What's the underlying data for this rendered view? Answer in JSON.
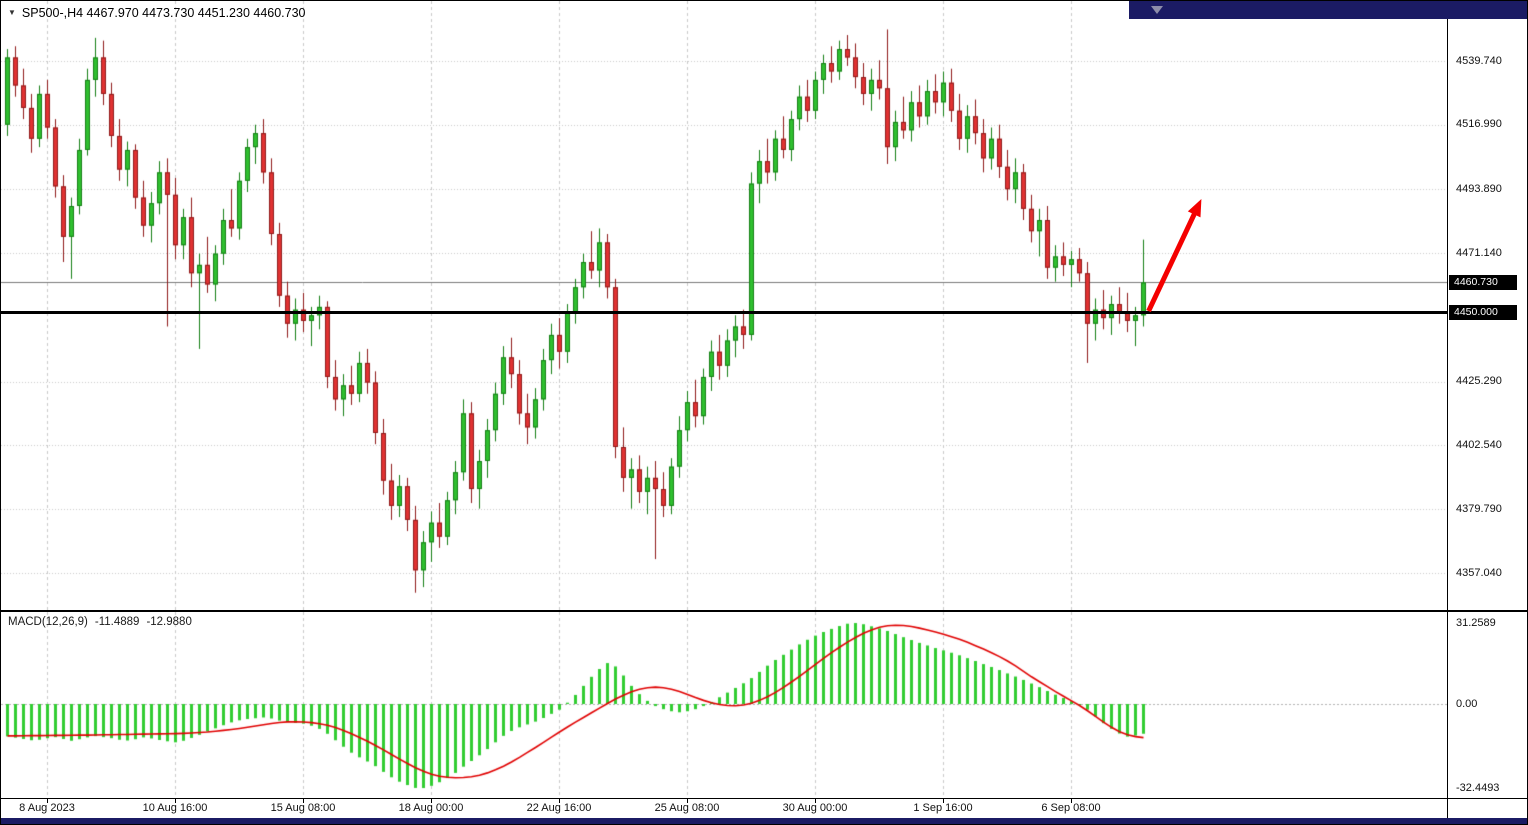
{
  "header": {
    "marker_icon": "▼",
    "title": "SP500-,H4 4467.970 4473.730 4451.230 4460.730"
  },
  "indicator": {
    "label": "MACD(12,26,9)",
    "main_value": "-11.4889",
    "signal_value": "-12.9880"
  },
  "price_axis": {
    "labels": [
      {
        "text": "4539.740",
        "value": 4539.74
      },
      {
        "text": "4516.990",
        "value": 4516.99
      },
      {
        "text": "4493.890",
        "value": 4493.89
      },
      {
        "text": "4471.140",
        "value": 4471.14
      },
      {
        "text": "4425.290",
        "value": 4425.29
      },
      {
        "text": "4402.540",
        "value": 4402.54
      },
      {
        "text": "4379.790",
        "value": 4379.79
      },
      {
        "text": "4357.040",
        "value": 4357.04
      }
    ],
    "badges": [
      {
        "text": "4460.730",
        "value": 4460.73
      },
      {
        "text": "4450.000",
        "value": 4450.0
      }
    ]
  },
  "macd_axis": {
    "labels": [
      {
        "text": "31.2589",
        "value": 31.2589
      },
      {
        "text": "0.00",
        "value": 0
      },
      {
        "text": "-32.4493",
        "value": -32.4493
      }
    ]
  },
  "time_axis": {
    "labels": [
      "8 Aug 2023",
      "10 Aug 16:00",
      "15 Aug 08:00",
      "18 Aug 00:00",
      "22 Aug 16:00",
      "25 Aug 08:00",
      "30 Aug 00:00",
      "1 Sep 16:00",
      "6 Sep 08:00"
    ]
  },
  "chart_data": [
    {
      "type": "candlestick",
      "title": "SP500-,H4",
      "symbol": "SP500-",
      "timeframe": "H4",
      "display_ohlc": {
        "open": "4467.970",
        "high": "4473.730",
        "low": "4451.230",
        "close": "4460.730"
      },
      "current_price": 4460.73,
      "y_ticks": [
        4539.74,
        4516.99,
        4493.89,
        4471.14,
        4425.29,
        4402.54,
        4379.79,
        4357.04
      ],
      "x_tick_labels": [
        "8 Aug 2023",
        "10 Aug 16:00",
        "15 Aug 08:00",
        "18 Aug 00:00",
        "22 Aug 16:00",
        "25 Aug 08:00",
        "30 Aug 00:00",
        "1 Sep 16:00",
        "6 Sep 08:00"
      ],
      "up_color": "#2fbf2f",
      "down_color": "#e03232",
      "objects": {
        "support_line": {
          "price": 4450.0,
          "color": "#000000",
          "width": 3
        },
        "trend_arrow": {
          "from": {
            "bar": 142.7,
            "price": 4450.5
          },
          "to": {
            "bar": 149.3,
            "price": 4490.5
          },
          "color": "#f40000"
        }
      },
      "candles": [
        [
          4517,
          4544,
          4513,
          4541
        ],
        [
          4541,
          4545,
          4527,
          4531
        ],
        [
          4531,
          4537,
          4519,
          4523
        ],
        [
          4523,
          4528,
          4507,
          4512
        ],
        [
          4512,
          4531,
          4509,
          4528
        ],
        [
          4528,
          4533,
          4512,
          4516
        ],
        [
          4516,
          4519,
          4491,
          4495
        ],
        [
          4495,
          4499,
          4468,
          4477
        ],
        [
          4477,
          4491,
          4462,
          4488
        ],
        [
          4488,
          4512,
          4485,
          4508
        ],
        [
          4508,
          4537,
          4506,
          4533
        ],
        [
          4533,
          4548,
          4527,
          4541
        ],
        [
          4541,
          4547,
          4524,
          4528
        ],
        [
          4528,
          4532,
          4509,
          4513
        ],
        [
          4513,
          4519,
          4497,
          4501
        ],
        [
          4501,
          4511,
          4495,
          4508
        ],
        [
          4508,
          4510,
          4487,
          4491
        ],
        [
          4491,
          4497,
          4477,
          4481
        ],
        [
          4481,
          4493,
          4475,
          4489
        ],
        [
          4489,
          4504,
          4485,
          4500
        ],
        [
          4500,
          4505,
          4445,
          4492
        ],
        [
          4492,
          4498,
          4469,
          4474
        ],
        [
          4474,
          4487,
          4469,
          4484
        ],
        [
          4484,
          4491,
          4459,
          4464
        ],
        [
          4464,
          4471,
          4437,
          4467
        ],
        [
          4467,
          4477,
          4457,
          4460
        ],
        [
          4460,
          4474,
          4454,
          4471
        ],
        [
          4471,
          4487,
          4467,
          4483
        ],
        [
          4483,
          4494,
          4477,
          4480
        ],
        [
          4480,
          4500,
          4476,
          4497
        ],
        [
          4497,
          4512,
          4493,
          4509
        ],
        [
          4509,
          4517,
          4503,
          4514
        ],
        [
          4514,
          4519,
          4496,
          4500
        ],
        [
          4500,
          4505,
          4474,
          4478
        ],
        [
          4478,
          4482,
          4452,
          4456
        ],
        [
          4456,
          4461,
          4441,
          4446
        ],
        [
          4446,
          4455,
          4440,
          4451
        ],
        [
          4451,
          4457,
          4443,
          4447
        ],
        [
          4447,
          4452,
          4438,
          4449
        ],
        [
          4449,
          4456,
          4444,
          4452
        ],
        [
          4452,
          4454,
          4423,
          4427
        ],
        [
          4427,
          4433,
          4415,
          4419
        ],
        [
          4419,
          4428,
          4413,
          4424
        ],
        [
          4424,
          4431,
          4417,
          4421
        ],
        [
          4421,
          4436,
          4418,
          4432
        ],
        [
          4432,
          4437,
          4421,
          4425
        ],
        [
          4425,
          4429,
          4403,
          4407
        ],
        [
          4407,
          4412,
          4385,
          4390
        ],
        [
          4390,
          4396,
          4376,
          4381
        ],
        [
          4381,
          4392,
          4377,
          4388
        ],
        [
          4388,
          4391,
          4372,
          4376
        ],
        [
          4376,
          4381,
          4350,
          4358
        ],
        [
          4358,
          4372,
          4352,
          4368
        ],
        [
          4368,
          4379,
          4361,
          4375
        ],
        [
          4375,
          4382,
          4366,
          4370
        ],
        [
          4370,
          4386,
          4367,
          4383
        ],
        [
          4383,
          4397,
          4378,
          4393
        ],
        [
          4393,
          4419,
          4390,
          4414
        ],
        [
          4414,
          4418,
          4382,
          4387
        ],
        [
          4387,
          4401,
          4380,
          4397
        ],
        [
          4397,
          4412,
          4391,
          4408
        ],
        [
          4408,
          4425,
          4404,
          4421
        ],
        [
          4421,
          4438,
          4417,
          4434
        ],
        [
          4434,
          4441,
          4423,
          4428
        ],
        [
          4428,
          4433,
          4410,
          4414
        ],
        [
          4414,
          4421,
          4403,
          4409
        ],
        [
          4409,
          4423,
          4405,
          4419
        ],
        [
          4419,
          4437,
          4415,
          4433
        ],
        [
          4433,
          4446,
          4428,
          4442
        ],
        [
          4442,
          4448,
          4430,
          4436
        ],
        [
          4436,
          4453,
          4432,
          4450
        ],
        [
          4450,
          4462,
          4446,
          4459
        ],
        [
          4459,
          4471,
          4455,
          4468
        ],
        [
          4468,
          4479,
          4462,
          4465
        ],
        [
          4465,
          4480,
          4459,
          4475
        ],
        [
          4475,
          4478,
          4455,
          4459
        ],
        [
          4459,
          4462,
          4398,
          4402
        ],
        [
          4402,
          4409,
          4386,
          4391
        ],
        [
          4391,
          4398,
          4380,
          4394
        ],
        [
          4394,
          4399,
          4382,
          4386
        ],
        [
          4386,
          4395,
          4378,
          4391
        ],
        [
          4391,
          4397,
          4362,
          4387
        ],
        [
          4387,
          4393,
          4377,
          4381
        ],
        [
          4381,
          4398,
          4378,
          4395
        ],
        [
          4395,
          4413,
          4391,
          4408
        ],
        [
          4408,
          4422,
          4404,
          4418
        ],
        [
          4418,
          4426,
          4409,
          4413
        ],
        [
          4413,
          4430,
          4410,
          4427
        ],
        [
          4427,
          4440,
          4422,
          4436
        ],
        [
          4436,
          4442,
          4426,
          4431
        ],
        [
          4431,
          4444,
          4427,
          4440
        ],
        [
          4440,
          4449,
          4434,
          4445
        ],
        [
          4445,
          4451,
          4437,
          4442
        ],
        [
          4442,
          4500,
          4440,
          4496
        ],
        [
          4496,
          4508,
          4489,
          4504
        ],
        [
          4504,
          4512,
          4496,
          4500
        ],
        [
          4500,
          4515,
          4497,
          4512
        ],
        [
          4512,
          4520,
          4505,
          4508
        ],
        [
          4508,
          4522,
          4504,
          4519
        ],
        [
          4519,
          4531,
          4515,
          4527
        ],
        [
          4527,
          4533,
          4518,
          4522
        ],
        [
          4522,
          4536,
          4519,
          4533
        ],
        [
          4533,
          4542,
          4528,
          4539
        ],
        [
          4539,
          4545,
          4532,
          4536
        ],
        [
          4536,
          4547,
          4533,
          4544
        ],
        [
          4544,
          4549,
          4538,
          4541
        ],
        [
          4541,
          4546,
          4530,
          4534
        ],
        [
          4534,
          4539,
          4524,
          4528
        ],
        [
          4528,
          4537,
          4522,
          4533
        ],
        [
          4533,
          4540,
          4526,
          4530
        ],
        [
          4530,
          4551,
          4503,
          4509
        ],
        [
          4509,
          4522,
          4504,
          4518
        ],
        [
          4518,
          4527,
          4512,
          4515
        ],
        [
          4515,
          4529,
          4511,
          4525
        ],
        [
          4525,
          4531,
          4516,
          4520
        ],
        [
          4520,
          4533,
          4517,
          4529
        ],
        [
          4529,
          4535,
          4521,
          4525
        ],
        [
          4525,
          4536,
          4520,
          4532
        ],
        [
          4532,
          4537,
          4518,
          4522
        ],
        [
          4522,
          4528,
          4508,
          4512
        ],
        [
          4512,
          4524,
          4507,
          4520
        ],
        [
          4520,
          4526,
          4510,
          4514
        ],
        [
          4514,
          4519,
          4500,
          4505
        ],
        [
          4505,
          4516,
          4501,
          4512
        ],
        [
          4512,
          4517,
          4498,
          4502
        ],
        [
          4502,
          4508,
          4490,
          4494
        ],
        [
          4494,
          4505,
          4489,
          4500
        ],
        [
          4500,
          4503,
          4483,
          4487
        ],
        [
          4487,
          4492,
          4475,
          4479
        ],
        [
          4479,
          4487,
          4470,
          4483
        ],
        [
          4483,
          4488,
          4462,
          4466
        ],
        [
          4466,
          4474,
          4461,
          4470
        ],
        [
          4470,
          4475,
          4463,
          4467
        ],
        [
          4467,
          4472,
          4459,
          4469
        ],
        [
          4469,
          4473,
          4461,
          4464
        ],
        [
          4464,
          4468,
          4432,
          4446
        ],
        [
          4446,
          4455,
          4440,
          4451
        ],
        [
          4451,
          4458,
          4444,
          4448
        ],
        [
          4448,
          4456,
          4442,
          4453
        ],
        [
          4453,
          4459,
          4446,
          4450
        ],
        [
          4450,
          4457,
          4443,
          4447
        ],
        [
          4447,
          4452,
          4438,
          4449
        ],
        [
          4449,
          4476,
          4445,
          4460.73
        ]
      ]
    },
    {
      "type": "bar+line",
      "name": "MACD(12,26,9)",
      "histogram_color": "#32cd32",
      "signal_color": "#e00000",
      "y_ticks": [
        31.2589,
        0.0,
        -32.4493
      ],
      "histogram": [
        -12.5,
        -13,
        -13.5,
        -14,
        -13.8,
        -13.2,
        -12.8,
        -13.5,
        -14.2,
        -13.6,
        -12.9,
        -12.4,
        -12.8,
        -13.2,
        -13.8,
        -14.1,
        -13.6,
        -12.9,
        -13.3,
        -13.9,
        -14.4,
        -14.8,
        -14.2,
        -13.1,
        -11.9,
        -10.6,
        -9.4,
        -8.2,
        -7.1,
        -6.3,
        -5.8,
        -5.5,
        -5.2,
        -5.6,
        -6.4,
        -7,
        -7.3,
        -7.6,
        -8.4,
        -9.6,
        -11.5,
        -14,
        -16.5,
        -18.8,
        -20.6,
        -22.2,
        -24,
        -26.2,
        -28.3,
        -30,
        -31.3,
        -32.4,
        -32.45,
        -31.6,
        -30.2,
        -28.6,
        -26.6,
        -24.2,
        -22,
        -19.8,
        -17.4,
        -14.8,
        -12.3,
        -10.4,
        -9,
        -7.9,
        -6.8,
        -5.4,
        -3.8,
        -2.2,
        0.5,
        3.5,
        7,
        10.5,
        13.5,
        15.8,
        14.5,
        11,
        7,
        3.8,
        1.2,
        -0.8,
        -2,
        -2.8,
        -3.2,
        -2.8,
        -2,
        -0.8,
        0.8,
        2.6,
        4.4,
        6.2,
        8,
        10,
        12.4,
        14.8,
        17,
        19,
        21,
        23,
        24.8,
        26.4,
        27.8,
        29,
        30.1,
        31,
        31.26,
        30.8,
        30,
        29.2,
        28.2,
        27,
        25.8,
        24.7,
        23.6,
        22.6,
        21.6,
        20.7,
        19.8,
        18.8,
        17.7,
        16.6,
        15.4,
        14.3,
        13.1,
        11.8,
        10.6,
        9.3,
        7.9,
        6.5,
        5,
        3.6,
        2.3,
        1.1,
        0,
        -2.2,
        -4.8,
        -7.4,
        -9.6,
        -11.4,
        -12.6,
        -12.2,
        -11.4889
      ],
      "signal": [
        -12.3,
        -12.3,
        -12.25,
        -12.2,
        -12.2,
        -12.15,
        -12.1,
        -12.1,
        -12.05,
        -12,
        -12,
        -11.95,
        -11.9,
        -11.85,
        -11.8,
        -11.75,
        -11.7,
        -11.65,
        -11.6,
        -11.55,
        -11.5,
        -11.45,
        -11.35,
        -11.2,
        -11,
        -10.8,
        -10.5,
        -10.2,
        -9.85,
        -9.45,
        -9,
        -8.5,
        -8,
        -7.5,
        -7.15,
        -6.9,
        -6.85,
        -6.95,
        -7.2,
        -7.6,
        -8.2,
        -9.1,
        -10.2,
        -11.5,
        -12.9,
        -14.4,
        -16,
        -17.7,
        -19.5,
        -21.3,
        -23,
        -24.6,
        -26,
        -27.1,
        -27.9,
        -28.3,
        -28.45,
        -28.4,
        -28.1,
        -27.5,
        -26.6,
        -25.4,
        -24,
        -22.4,
        -20.6,
        -18.7,
        -16.8,
        -14.8,
        -12.8,
        -10.8,
        -8.9,
        -7,
        -5.2,
        -3.4,
        -1.6,
        0.2,
        1.9,
        3.4,
        4.7,
        5.7,
        6.3,
        6.5,
        6.3,
        5.7,
        4.8,
        3.7,
        2.5,
        1.4,
        0.5,
        -0.2,
        -0.6,
        -0.7,
        -0.4,
        0.3,
        1.4,
        2.8,
        4.5,
        6.4,
        8.5,
        10.7,
        13,
        15.3,
        17.6,
        19.8,
        21.9,
        23.9,
        25.7,
        27.3,
        28.6,
        29.6,
        30.2,
        30.4,
        30.3,
        29.9,
        29.3,
        28.6,
        27.8,
        26.9,
        26,
        25,
        23.8,
        22.5,
        21.2,
        19.8,
        18.3,
        16.6,
        14.7,
        12.6,
        10.5,
        8.6,
        6.7,
        4.8,
        3,
        1.2,
        -0.6,
        -2.6,
        -4.8,
        -7,
        -9,
        -10.7,
        -11.9,
        -12.6,
        -12.988
      ]
    }
  ]
}
